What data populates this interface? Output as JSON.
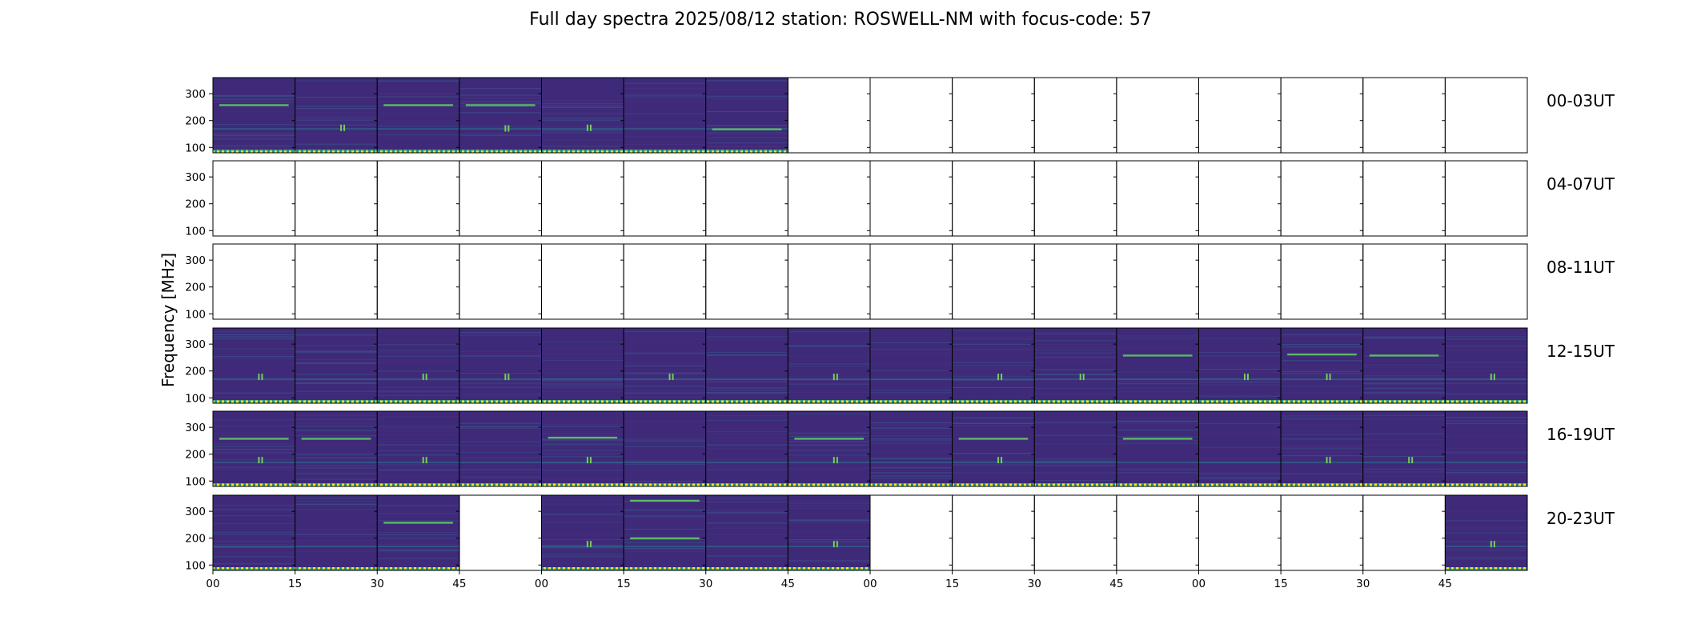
{
  "chart_data": {
    "type": "heatmap",
    "title": "Full day spectra 2025/08/12 station: ROSWELL-NM with focus-code: 57",
    "ylabel": "Frequency [MHz]",
    "xlabel": "",
    "y_ticks": [
      100,
      200,
      300
    ],
    "ylim": [
      80,
      360
    ],
    "x_tick_labels": [
      "00",
      "15",
      "30",
      "45",
      "00",
      "15",
      "30",
      "45",
      "00",
      "15",
      "30",
      "45",
      "00",
      "15",
      "30",
      "45"
    ],
    "colormap": "viridis",
    "colors": {
      "low": "#440154",
      "mid": "#3b528b",
      "teal": "#21918c",
      "green": "#5ec962",
      "high": "#fde725"
    },
    "rows": [
      {
        "label": "00-03UT",
        "filled": [
          1,
          1,
          1,
          1,
          1,
          1,
          1,
          0,
          0,
          0,
          0,
          0,
          0,
          0,
          0,
          0
        ],
        "bright_lines": [
          {
            "panel": 0,
            "freq": 258
          },
          {
            "panel": 2,
            "freq": 258
          },
          {
            "panel": 3,
            "freq": 258
          },
          {
            "panel": 6,
            "freq": 168
          }
        ],
        "bursts": [
          {
            "panel": 1,
            "freq": 170
          },
          {
            "panel": 3,
            "freq": 168
          },
          {
            "panel": 4,
            "freq": 170
          }
        ]
      },
      {
        "label": "04-07UT",
        "filled": [
          0,
          0,
          0,
          0,
          0,
          0,
          0,
          0,
          0,
          0,
          0,
          0,
          0,
          0,
          0,
          0
        ],
        "bright_lines": [],
        "bursts": []
      },
      {
        "label": "08-11UT",
        "filled": [
          0,
          0,
          0,
          0,
          0,
          0,
          0,
          0,
          0,
          0,
          0,
          0,
          0,
          0,
          0,
          0
        ],
        "bright_lines": [],
        "bursts": []
      },
      {
        "label": "12-15UT",
        "filled": [
          1,
          1,
          1,
          1,
          1,
          1,
          1,
          1,
          1,
          1,
          1,
          1,
          1,
          1,
          1,
          1
        ],
        "bright_lines": [
          {
            "panel": 11,
            "freq": 258
          },
          {
            "panel": 13,
            "freq": 262
          },
          {
            "panel": 14,
            "freq": 258
          }
        ],
        "bursts": [
          {
            "panel": 0,
            "freq": 175
          },
          {
            "panel": 2,
            "freq": 175
          },
          {
            "panel": 3,
            "freq": 175
          },
          {
            "panel": 5,
            "freq": 175
          },
          {
            "panel": 7,
            "freq": 175
          },
          {
            "panel": 9,
            "freq": 175
          },
          {
            "panel": 10,
            "freq": 175
          },
          {
            "panel": 12,
            "freq": 175
          },
          {
            "panel": 13,
            "freq": 175
          },
          {
            "panel": 15,
            "freq": 175
          }
        ]
      },
      {
        "label": "16-19UT",
        "filled": [
          1,
          1,
          1,
          1,
          1,
          1,
          1,
          1,
          1,
          1,
          1,
          1,
          1,
          1,
          1,
          1
        ],
        "bright_lines": [
          {
            "panel": 0,
            "freq": 258
          },
          {
            "panel": 1,
            "freq": 258
          },
          {
            "panel": 4,
            "freq": 262
          },
          {
            "panel": 7,
            "freq": 258
          },
          {
            "panel": 9,
            "freq": 258
          },
          {
            "panel": 11,
            "freq": 258
          }
        ],
        "bursts": [
          {
            "panel": 0,
            "freq": 175
          },
          {
            "panel": 2,
            "freq": 175
          },
          {
            "panel": 4,
            "freq": 175
          },
          {
            "panel": 7,
            "freq": 175
          },
          {
            "panel": 9,
            "freq": 175
          },
          {
            "panel": 13,
            "freq": 175
          },
          {
            "panel": 14,
            "freq": 175
          }
        ]
      },
      {
        "label": "20-23UT",
        "filled": [
          1,
          1,
          1,
          0,
          1,
          1,
          1,
          1,
          0,
          0,
          0,
          0,
          0,
          0,
          0,
          1
        ],
        "bright_lines": [
          {
            "panel": 2,
            "freq": 258
          },
          {
            "panel": 5,
            "freq": 200
          },
          {
            "panel": 5,
            "freq": 340
          }
        ],
        "bursts": [
          {
            "panel": 4,
            "freq": 175
          },
          {
            "panel": 7,
            "freq": 175
          },
          {
            "panel": 15,
            "freq": 175
          }
        ]
      }
    ]
  }
}
